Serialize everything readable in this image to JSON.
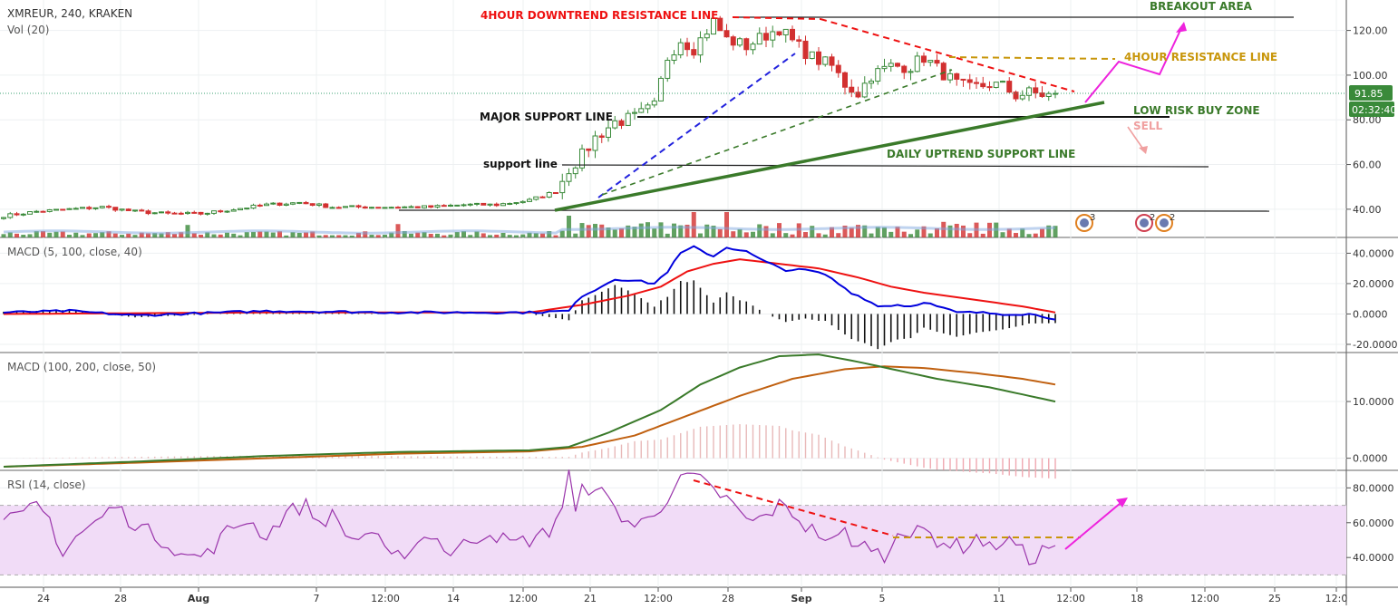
{
  "header": {
    "symbol_line": "XMREUR, 240, KRAKEN",
    "volume_label": "Vol (20)"
  },
  "colors": {
    "up": "#3a8a3a",
    "down": "#d23030",
    "macd_fast": "#0000dd",
    "macd_signal": "#ee1111",
    "macd2_fast": "#3a7a2a",
    "macd2_signal": "#c06010",
    "rsi": "#9933aa",
    "rsi_band": "#f1dcf7",
    "annot_red": "#ee1111",
    "annot_green": "#3a7a2a",
    "annot_gold": "#c8960a",
    "annot_magenta": "#ee22dd",
    "sell_pink": "#f0a0a0"
  },
  "price_badges": {
    "last_price": "91.85",
    "countdown": "02:32:40"
  },
  "chart_data": [
    {
      "type": "candlestick",
      "panel": "price",
      "ylim": [
        29,
        132
      ],
      "ticks": [
        "40.00",
        "60.00",
        "80.00",
        "100.00",
        "120.00"
      ],
      "tick_values": [
        40,
        60,
        80,
        100,
        120
      ],
      "x_labels": [
        "24",
        "28",
        "Aug",
        "7",
        "12:00",
        "14",
        "12:00",
        "21",
        "12:00",
        "28",
        "Sep",
        "5",
        "11",
        "12:00",
        "18",
        "12:00",
        "25",
        "12:0"
      ],
      "close_anchors": [
        [
          0,
          37
        ],
        [
          5,
          39
        ],
        [
          10,
          40
        ],
        [
          15,
          41
        ],
        [
          20,
          39
        ],
        [
          25,
          38
        ],
        [
          30,
          38
        ],
        [
          35,
          40
        ],
        [
          40,
          42
        ],
        [
          45,
          43
        ],
        [
          50,
          41
        ],
        [
          55,
          41
        ],
        [
          60,
          41
        ],
        [
          65,
          41
        ],
        [
          70,
          42
        ],
        [
          75,
          42
        ],
        [
          80,
          44
        ],
        [
          84,
          48
        ],
        [
          86,
          58
        ],
        [
          88,
          64
        ],
        [
          90,
          72
        ],
        [
          93,
          79
        ],
        [
          96,
          81
        ],
        [
          99,
          86
        ],
        [
          101,
          108
        ],
        [
          103,
          116
        ],
        [
          105,
          112
        ],
        [
          108,
          124
        ],
        [
          110,
          116
        ],
        [
          113,
          113
        ],
        [
          116,
          118
        ],
        [
          118,
          121
        ],
        [
          120,
          115
        ],
        [
          123,
          108
        ],
        [
          126,
          104
        ],
        [
          128,
          96
        ],
        [
          130,
          92
        ],
        [
          132,
          100
        ],
        [
          135,
          104
        ],
        [
          138,
          104
        ],
        [
          140,
          108
        ],
        [
          142,
          103
        ],
        [
          145,
          96
        ],
        [
          147,
          94
        ],
        [
          150,
          96
        ],
        [
          152,
          95
        ],
        [
          154,
          91
        ],
        [
          156,
          92
        ],
        [
          159,
          91
        ],
        [
          160,
          91.85
        ]
      ],
      "annotations": [
        {
          "text": "4HOUR DOWNTREND RESISTANCE LINE",
          "color": "red"
        },
        {
          "text": "BREAKOUT AREA",
          "color": "green"
        },
        {
          "text": "4HOUR RESISTANCE LINE",
          "color": "gold"
        },
        {
          "text": "LOW RISK BUY ZONE",
          "color": "green"
        },
        {
          "text": "SELL",
          "color": "pink"
        },
        {
          "text": "MAJOR SUPPORT LINE",
          "color": "black"
        },
        {
          "text": "support line",
          "color": "black"
        },
        {
          "text": "DAILY UPTREND SUPPORT LINE",
          "color": "green"
        }
      ],
      "event_badges": [
        "3",
        "2",
        "2"
      ]
    },
    {
      "type": "line",
      "panel": "macd1",
      "title": "MACD (5, 100, close, 40)",
      "ylim": [
        -23,
        48
      ],
      "ticks": [
        "40.0000",
        "20.0000",
        "0.0000",
        "-20.0000"
      ],
      "tick_values": [
        40,
        20,
        0,
        -20
      ],
      "series": [
        {
          "values_anchor": [
            [
              0,
              1
            ],
            [
              10,
              2
            ],
            [
              20,
              -1
            ],
            [
              40,
              2
            ],
            [
              60,
              1
            ],
            [
              80,
              1
            ],
            [
              86,
              2
            ],
            [
              88,
              12
            ],
            [
              90,
              16
            ],
            [
              93,
              23
            ],
            [
              96,
              22
            ],
            [
              99,
              20
            ],
            [
              101,
              28
            ],
            [
              103,
              40
            ],
            [
              105,
              44
            ],
            [
              108,
              38
            ],
            [
              110,
              44
            ],
            [
              113,
              41
            ],
            [
              116,
              34
            ],
            [
              119,
              29
            ],
            [
              122,
              29
            ],
            [
              125,
              26
            ],
            [
              127,
              20
            ],
            [
              129,
              14
            ],
            [
              131,
              10
            ],
            [
              133,
              5
            ],
            [
              136,
              6
            ],
            [
              138,
              5
            ],
            [
              140,
              8
            ],
            [
              142,
              5
            ],
            [
              145,
              1
            ],
            [
              148,
              1
            ],
            [
              152,
              0
            ],
            [
              156,
              0
            ],
            [
              160,
              -3
            ]
          ]
        },
        {
          "values_anchor": [
            [
              0,
              0
            ],
            [
              40,
              1
            ],
            [
              80,
              1
            ],
            [
              88,
              6
            ],
            [
              95,
              12
            ],
            [
              100,
              18
            ],
            [
              104,
              28
            ],
            [
              108,
              33
            ],
            [
              112,
              36
            ],
            [
              118,
              33
            ],
            [
              124,
              30
            ],
            [
              130,
              24
            ],
            [
              135,
              18
            ],
            [
              140,
              14
            ],
            [
              145,
              11
            ],
            [
              150,
              8
            ],
            [
              155,
              5
            ],
            [
              160,
              1
            ]
          ]
        }
      ]
    },
    {
      "type": "line",
      "panel": "macd2",
      "title": "MACD (100, 200, close, 50)",
      "ylim": [
        -1.5,
        18
      ],
      "ticks": [
        "10.0000",
        "0.0000"
      ],
      "tick_values": [
        10,
        0
      ],
      "series": [
        {
          "values_anchor": [
            [
              0,
              -1.5
            ],
            [
              20,
              -0.6
            ],
            [
              40,
              0.4
            ],
            [
              60,
              1.1
            ],
            [
              80,
              1.4
            ],
            [
              86,
              2
            ],
            [
              92,
              4.5
            ],
            [
              100,
              8.5
            ],
            [
              106,
              13
            ],
            [
              112,
              16
            ],
            [
              118,
              18
            ],
            [
              124,
              18.3
            ],
            [
              130,
              17
            ],
            [
              136,
              15.5
            ],
            [
              142,
              14
            ],
            [
              150,
              12.5
            ],
            [
              160,
              10
            ]
          ]
        },
        {
          "values_anchor": [
            [
              0,
              -1.5
            ],
            [
              20,
              -0.8
            ],
            [
              40,
              0
            ],
            [
              60,
              0.8
            ],
            [
              80,
              1.2
            ],
            [
              88,
              2
            ],
            [
              96,
              4
            ],
            [
              104,
              7.5
            ],
            [
              112,
              11
            ],
            [
              120,
              14
            ],
            [
              128,
              15.7
            ],
            [
              134,
              16.2
            ],
            [
              140,
              15.9
            ],
            [
              148,
              15
            ],
            [
              155,
              14
            ],
            [
              160,
              13
            ]
          ]
        }
      ]
    },
    {
      "type": "line",
      "panel": "rsi",
      "title": "RSI (14, close)",
      "ylim": [
        25,
        88
      ],
      "ticks": [
        "80.0000",
        "60.0000",
        "40.0000"
      ],
      "tick_values": [
        80,
        60,
        40
      ],
      "band": [
        30,
        70
      ],
      "values_anchor": [
        [
          0,
          60
        ],
        [
          3,
          64
        ],
        [
          5,
          70
        ],
        [
          7,
          62
        ],
        [
          9,
          42
        ],
        [
          11,
          52
        ],
        [
          14,
          60
        ],
        [
          17,
          70
        ],
        [
          19,
          62
        ],
        [
          22,
          55
        ],
        [
          25,
          48
        ],
        [
          28,
          40
        ],
        [
          31,
          42
        ],
        [
          34,
          55
        ],
        [
          37,
          62
        ],
        [
          40,
          52
        ],
        [
          43,
          66
        ],
        [
          46,
          70
        ],
        [
          48,
          60
        ],
        [
          50,
          64
        ],
        [
          53,
          50
        ],
        [
          56,
          55
        ],
        [
          59,
          38
        ],
        [
          62,
          46
        ],
        [
          65,
          54
        ],
        [
          68,
          42
        ],
        [
          71,
          50
        ],
        [
          74,
          55
        ],
        [
          77,
          48
        ],
        [
          80,
          50
        ],
        [
          83,
          55
        ],
        [
          85,
          70
        ],
        [
          86,
          88
        ],
        [
          87,
          65
        ],
        [
          88,
          78
        ],
        [
          90,
          82
        ],
        [
          92,
          72
        ],
        [
          94,
          64
        ],
        [
          96,
          58
        ],
        [
          98,
          62
        ],
        [
          100,
          70
        ],
        [
          102,
          80
        ],
        [
          104,
          87
        ],
        [
          106,
          84
        ],
        [
          108,
          78
        ],
        [
          110,
          74
        ],
        [
          112,
          65
        ],
        [
          114,
          60
        ],
        [
          116,
          64
        ],
        [
          118,
          70
        ],
        [
          120,
          66
        ],
        [
          122,
          58
        ],
        [
          124,
          54
        ],
        [
          126,
          48
        ],
        [
          128,
          55
        ],
        [
          130,
          45
        ],
        [
          132,
          48
        ],
        [
          134,
          38
        ],
        [
          136,
          58
        ],
        [
          138,
          52
        ],
        [
          140,
          56
        ],
        [
          142,
          50
        ],
        [
          144,
          48
        ],
        [
          146,
          46
        ],
        [
          148,
          52
        ],
        [
          150,
          45
        ],
        [
          152,
          50
        ],
        [
          154,
          48
        ],
        [
          156,
          38
        ],
        [
          158,
          44
        ],
        [
          160,
          48
        ]
      ]
    }
  ]
}
